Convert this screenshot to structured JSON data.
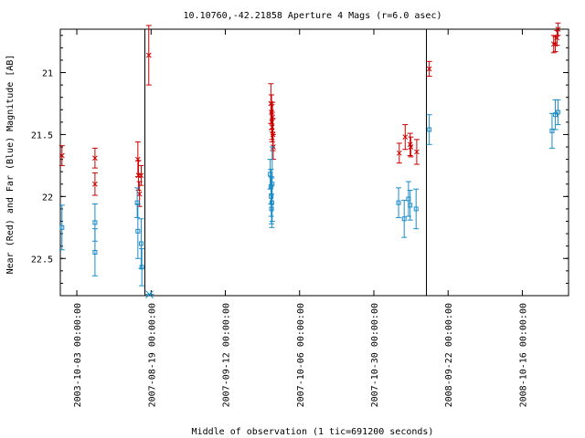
{
  "chart_data": {
    "type": "scatter",
    "title": "10.10760,-42.21858   Aperture 4 Mags (r=6.0 asec)",
    "xlabel": "Middle of observation (1 tic=691200 seconds)",
    "ylabel": "Near (Red) and Far (Blue) Magnitude [AB]",
    "ylim": [
      22.8,
      20.65
    ],
    "y_reversed": true,
    "grid": false,
    "y_ticks": [
      {
        "value": 21,
        "label": "21"
      },
      {
        "value": 21.5,
        "label": "21.5"
      },
      {
        "value": 22,
        "label": "22"
      },
      {
        "value": 22.5,
        "label": "22.5"
      }
    ],
    "x_ticks": [
      {
        "label": "2003-10-03 00:00:00"
      },
      {
        "label": "2007-08-19 00:00:00"
      },
      {
        "label": "2007-09-12 00:00:00"
      },
      {
        "label": "2007-10-06 00:00:00"
      },
      {
        "label": "2007-10-30 00:00:00"
      },
      {
        "label": "2008-09-22 00:00:00"
      },
      {
        "label": "2008-10-16 00:00:00"
      }
    ],
    "x_tick_positions": [
      0.05,
      0.275,
      0.5,
      0.725,
      0.95,
      1.175,
      1.4
    ],
    "xlim": [
      0,
      1.54
    ],
    "segment_breaks": [
      0.256,
      1.109
    ],
    "series": [
      {
        "color": "#cc0000",
        "marker": "x",
        "points": [
          {
            "x": 0.005,
            "y": 21.67,
            "err": 0.08
          },
          {
            "x": 0.105,
            "y": 21.69,
            "err": 0.08
          },
          {
            "x": 0.105,
            "y": 21.9,
            "err": 0.09
          },
          {
            "x": 0.235,
            "y": 21.7,
            "err": 0.14
          },
          {
            "x": 0.237,
            "y": 21.83,
            "err": 0.12
          },
          {
            "x": 0.24,
            "y": 21.98,
            "err": 0.1
          },
          {
            "x": 0.245,
            "y": 21.83,
            "err": 0.08
          },
          {
            "x": 0.268,
            "y": 20.86,
            "err": 0.24
          },
          {
            "x": 0.638,
            "y": 21.25,
            "err": 0.16
          },
          {
            "x": 0.64,
            "y": 21.32,
            "err": 0.14
          },
          {
            "x": 0.641,
            "y": 21.4,
            "err": 0.14
          },
          {
            "x": 0.642,
            "y": 21.44,
            "err": 0.12
          },
          {
            "x": 0.643,
            "y": 21.36,
            "err": 0.12
          },
          {
            "x": 0.644,
            "y": 21.5,
            "err": 0.13
          },
          {
            "x": 0.645,
            "y": 21.6,
            "err": 0.1
          },
          {
            "x": 1.027,
            "y": 21.65,
            "err": 0.08
          },
          {
            "x": 1.045,
            "y": 21.52,
            "err": 0.1
          },
          {
            "x": 1.06,
            "y": 21.58,
            "err": 0.09
          },
          {
            "x": 1.062,
            "y": 21.6,
            "err": 0.08
          },
          {
            "x": 1.08,
            "y": 21.64,
            "err": 0.1
          },
          {
            "x": 1.118,
            "y": 20.97,
            "err": 0.06
          },
          {
            "x": 1.495,
            "y": 20.77,
            "err": 0.07
          },
          {
            "x": 1.5,
            "y": 20.77,
            "err": 0.06
          },
          {
            "x": 1.505,
            "y": 20.72,
            "err": 0.06
          },
          {
            "x": 1.508,
            "y": 20.65,
            "err": 0.05
          }
        ]
      },
      {
        "color": "#1a8cc8",
        "marker": "square",
        "points": [
          {
            "x": 0.005,
            "y": 22.25,
            "err": 0.18
          },
          {
            "x": 0.105,
            "y": 22.21,
            "err": 0.15
          },
          {
            "x": 0.105,
            "y": 22.45,
            "err": 0.19
          },
          {
            "x": 0.233,
            "y": 22.05,
            "err": 0.12
          },
          {
            "x": 0.235,
            "y": 22.28,
            "err": 0.22
          },
          {
            "x": 0.245,
            "y": 22.38,
            "err": 0.2
          },
          {
            "x": 0.247,
            "y": 22.57,
            "err": 0.15
          },
          {
            "x": 0.636,
            "y": 21.82,
            "err": 0.12
          },
          {
            "x": 0.638,
            "y": 21.92,
            "err": 0.14
          },
          {
            "x": 0.639,
            "y": 22.0,
            "err": 0.16
          },
          {
            "x": 0.64,
            "y": 22.1,
            "err": 0.12
          },
          {
            "x": 0.641,
            "y": 22.05,
            "err": 0.2
          },
          {
            "x": 0.642,
            "y": 21.9,
            "err": 0.3
          },
          {
            "x": 1.025,
            "y": 22.05,
            "err": 0.12
          },
          {
            "x": 1.042,
            "y": 22.18,
            "err": 0.15
          },
          {
            "x": 1.055,
            "y": 22.02,
            "err": 0.14
          },
          {
            "x": 1.06,
            "y": 22.07,
            "err": 0.12
          },
          {
            "x": 1.078,
            "y": 22.1,
            "err": 0.16
          },
          {
            "x": 1.118,
            "y": 21.46,
            "err": 0.12
          },
          {
            "x": 1.49,
            "y": 21.47,
            "err": 0.14
          },
          {
            "x": 1.5,
            "y": 21.34,
            "err": 0.12
          },
          {
            "x": 1.508,
            "y": 21.32,
            "err": 0.1
          }
        ]
      }
    ],
    "marker_point": {
      "x": 0.27,
      "y": 22.79,
      "marker": "asterisk"
    }
  }
}
